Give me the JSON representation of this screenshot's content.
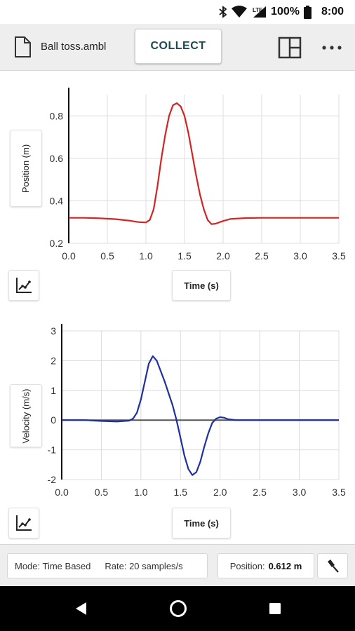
{
  "status_bar": {
    "network_label": "LTE",
    "battery_text": "100%",
    "time": "8:00",
    "icons": [
      "bluetooth-icon",
      "wifi-icon",
      "cell-signal-icon",
      "battery-icon"
    ]
  },
  "app_bar": {
    "file_icon": "file-icon",
    "file_name": "Ball toss.ambl",
    "collect_label": "COLLECT",
    "layout_icon": "layout-icon",
    "more_icon": "more-icon"
  },
  "graphs": [
    {
      "y_axis_label": "Position (m)",
      "x_axis_label": "Time (s)",
      "tool_icon": "graph-tools-icon"
    },
    {
      "y_axis_label": "Velocity (m/s)",
      "x_axis_label": "Time (s)",
      "tool_icon": "graph-tools-icon"
    }
  ],
  "chart_data": [
    {
      "type": "line",
      "xlabel": "Time (s)",
      "ylabel": "Position (m)",
      "xlim": [
        0.0,
        3.5
      ],
      "ylim": [
        0.2,
        0.9
      ],
      "x_ticks": [
        "0.0",
        "0.5",
        "1.0",
        "1.5",
        "2.0",
        "2.5",
        "3.0",
        "3.5"
      ],
      "y_ticks": [
        "0.2",
        "0.4",
        "0.6",
        "0.8"
      ],
      "y_tick_values": [
        0.2,
        0.4,
        0.6,
        0.8
      ],
      "grid": true,
      "color": "#d32424",
      "x": [
        0.0,
        0.2,
        0.4,
        0.6,
        0.8,
        0.9,
        1.0,
        1.05,
        1.1,
        1.15,
        1.2,
        1.25,
        1.3,
        1.35,
        1.4,
        1.45,
        1.5,
        1.55,
        1.6,
        1.65,
        1.7,
        1.75,
        1.8,
        1.85,
        1.9,
        2.0,
        2.1,
        2.3,
        2.5,
        3.0,
        3.5
      ],
      "values": [
        0.32,
        0.32,
        0.318,
        0.314,
        0.306,
        0.3,
        0.298,
        0.31,
        0.36,
        0.47,
        0.6,
        0.71,
        0.8,
        0.85,
        0.86,
        0.845,
        0.8,
        0.72,
        0.62,
        0.52,
        0.43,
        0.36,
        0.31,
        0.29,
        0.292,
        0.305,
        0.315,
        0.319,
        0.32,
        0.32,
        0.32
      ]
    },
    {
      "type": "line",
      "xlabel": "Time (s)",
      "ylabel": "Velocity (m/s)",
      "xlim": [
        0.0,
        3.5
      ],
      "ylim": [
        -2,
        3
      ],
      "x_ticks": [
        "0.0",
        "0.5",
        "1.0",
        "1.5",
        "2.0",
        "2.5",
        "3.0",
        "3.5"
      ],
      "y_ticks": [
        "-2",
        "-1",
        "0",
        "1",
        "2",
        "3"
      ],
      "y_tick_values": [
        -2,
        -1,
        0,
        1,
        2,
        3
      ],
      "grid": true,
      "color": "#1f2fa0",
      "x": [
        0.0,
        0.3,
        0.5,
        0.7,
        0.85,
        0.9,
        0.95,
        1.0,
        1.05,
        1.1,
        1.15,
        1.2,
        1.3,
        1.4,
        1.45,
        1.5,
        1.55,
        1.6,
        1.65,
        1.7,
        1.75,
        1.8,
        1.85,
        1.9,
        1.95,
        2.0,
        2.05,
        2.1,
        2.2,
        2.5,
        3.0,
        3.5
      ],
      "values": [
        0.0,
        0.0,
        -0.03,
        -0.05,
        -0.02,
        0.05,
        0.25,
        0.7,
        1.3,
        1.9,
        2.15,
        2.0,
        1.3,
        0.5,
        0.0,
        -0.6,
        -1.2,
        -1.65,
        -1.85,
        -1.75,
        -1.4,
        -0.9,
        -0.45,
        -0.1,
        0.05,
        0.1,
        0.08,
        0.03,
        0.0,
        0.0,
        0.0,
        0.0
      ]
    }
  ],
  "bottom_bar": {
    "mode_text": "Mode: Time Based",
    "rate_text": "Rate: 20 samples/s",
    "position_label": "Position:",
    "position_value": "0.612 m",
    "probe_icon": "probe-icon"
  },
  "nav_bar": {
    "icons": [
      "back-icon",
      "home-icon",
      "recents-icon"
    ]
  }
}
